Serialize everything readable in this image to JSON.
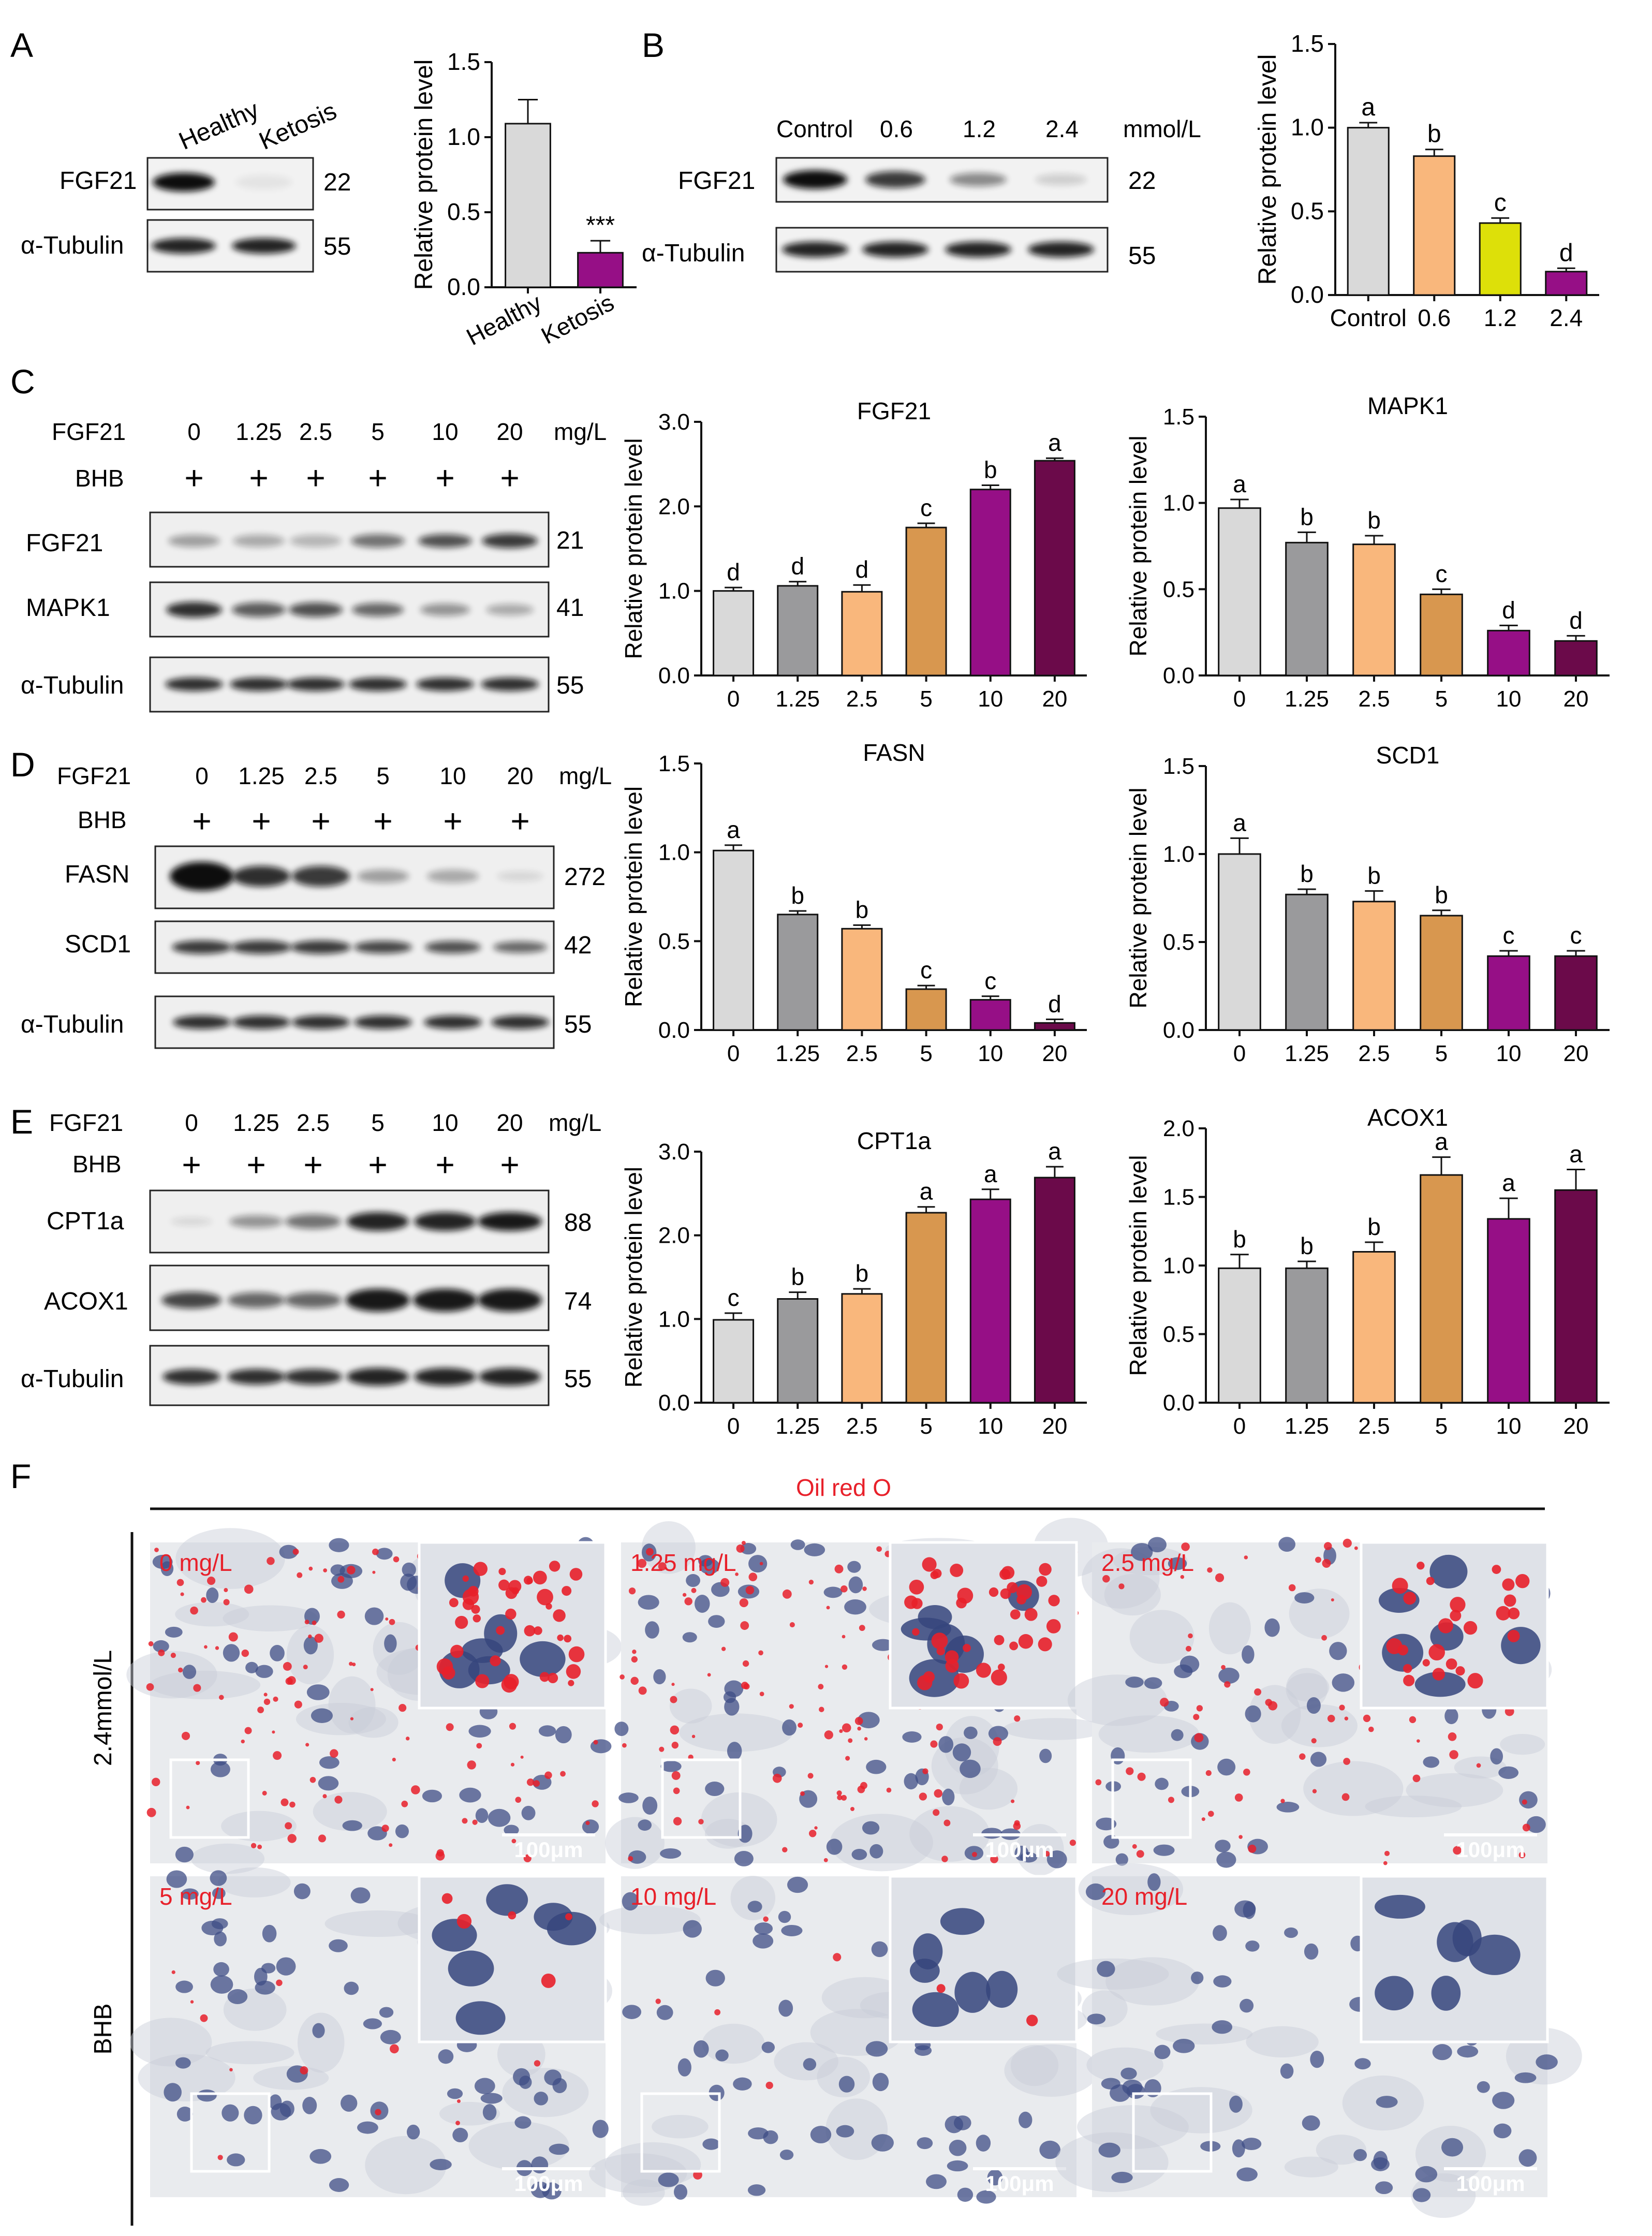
{
  "panel_letters": [
    "A",
    "B",
    "C",
    "D",
    "E",
    "F"
  ],
  "blot_A": {
    "lanes": [
      "Healthy",
      "Ketosis"
    ],
    "bands": [
      {
        "name": "FGF21",
        "kda": "22",
        "intensities": [
          1.0,
          0.06
        ]
      },
      {
        "name": "α-Tubulin",
        "kda": "55",
        "intensities": [
          0.9,
          0.9
        ]
      }
    ]
  },
  "blot_B": {
    "lanes": [
      "Control",
      "0.6",
      "1.2",
      "2.4"
    ],
    "unit": "mmol/L",
    "bands": [
      {
        "name": "FGF21",
        "kda": "22",
        "intensities": [
          1.0,
          0.8,
          0.45,
          0.15
        ]
      },
      {
        "name": "α-Tubulin",
        "kda": "55",
        "intensities": [
          0.9,
          0.9,
          0.9,
          0.9
        ]
      }
    ]
  },
  "blot_C": {
    "row_label_fgf21": "FGF21",
    "row_label_bhb": "BHB",
    "lanes": [
      "0",
      "1.25",
      "2.5",
      "5",
      "10",
      "20"
    ],
    "plus": "+",
    "unit": "mg/L",
    "bands": [
      {
        "name": "FGF21",
        "kda": "21",
        "intensities": [
          0.35,
          0.3,
          0.25,
          0.55,
          0.7,
          0.8
        ]
      },
      {
        "name": "MAPK1",
        "kda": "41",
        "intensities": [
          0.85,
          0.65,
          0.7,
          0.6,
          0.4,
          0.3
        ]
      },
      {
        "name": "α-Tubulin",
        "kda": "55",
        "intensities": [
          0.85,
          0.85,
          0.85,
          0.85,
          0.85,
          0.85
        ]
      }
    ]
  },
  "blot_D": {
    "row_label_fgf21": "FGF21",
    "row_label_bhb": "BHB",
    "lanes": [
      "0",
      "1.25",
      "2.5",
      "5",
      "10",
      "20"
    ],
    "plus": "+",
    "unit": "mg/L",
    "bands": [
      {
        "name": "FASN",
        "kda": "272",
        "intensities": [
          1.0,
          0.85,
          0.8,
          0.35,
          0.3,
          0.1
        ]
      },
      {
        "name": "SCD1",
        "kda": "42",
        "intensities": [
          0.8,
          0.8,
          0.8,
          0.75,
          0.7,
          0.6
        ]
      },
      {
        "name": "α-Tubulin",
        "kda": "55",
        "intensities": [
          0.85,
          0.85,
          0.85,
          0.85,
          0.85,
          0.85
        ]
      }
    ]
  },
  "blot_E": {
    "row_label_fgf21": "FGF21",
    "row_label_bhb": "BHB",
    "lanes": [
      "0",
      "1.25",
      "2.5",
      "5",
      "10",
      "20"
    ],
    "plus": "+",
    "unit": "mg/L",
    "bands": [
      {
        "name": "CPT1a",
        "kda": "88",
        "intensities": [
          0.1,
          0.4,
          0.55,
          0.9,
          0.9,
          0.95
        ]
      },
      {
        "name": "ACOX1",
        "kda": "74",
        "intensities": [
          0.75,
          0.6,
          0.6,
          0.95,
          0.95,
          0.95
        ]
      },
      {
        "name": "α-Tubulin",
        "kda": "55",
        "intensities": [
          0.85,
          0.85,
          0.85,
          0.85,
          0.85,
          0.85
        ]
      }
    ]
  },
  "colors": {
    "gray_light": "#d9d9d9",
    "gray_dark": "#9a9a9c",
    "peach": "#f9b77c",
    "tan": "#d8974f",
    "magenta": "#960f86",
    "maroon": "#6b0a4a",
    "lime": "#dde009",
    "stain_red": "#e8202a"
  },
  "chart_data": [
    {
      "type": "bar",
      "title": "",
      "ylabel": "Relative protein level",
      "ylim": [
        0,
        1.5
      ],
      "yticks": [
        "0.0",
        "0.5",
        "1.0",
        "1.5"
      ],
      "categories": [
        "Healthy",
        "Ketosis"
      ],
      "values": [
        1.09,
        0.23
      ],
      "errors": [
        0.16,
        0.08
      ],
      "annotations": [
        "",
        "***"
      ],
      "colors": [
        "#d9d9d9",
        "#960f86"
      ]
    },
    {
      "type": "bar",
      "title": "",
      "ylabel": "Relative protein level",
      "ylim": [
        0,
        1.5
      ],
      "yticks": [
        "0.0",
        "0.5",
        "1.0",
        "1.5"
      ],
      "categories": [
        "Control",
        "0.6",
        "1.2",
        "2.4"
      ],
      "values": [
        1.0,
        0.83,
        0.43,
        0.14
      ],
      "errors": [
        0.03,
        0.04,
        0.03,
        0.02
      ],
      "annotations": [
        "a",
        "b",
        "c",
        "d"
      ],
      "colors": [
        "#d9d9d9",
        "#f9b77c",
        "#dde009",
        "#960f86"
      ]
    },
    {
      "type": "bar",
      "title": "FGF21",
      "ylabel": "Relative protein level",
      "ylim": [
        0,
        3.0
      ],
      "yticks": [
        "0.0",
        "1.0",
        "2.0",
        "3.0"
      ],
      "categories": [
        "0",
        "1.25",
        "2.5",
        "5",
        "10",
        "20"
      ],
      "values": [
        1.0,
        1.06,
        0.99,
        1.75,
        2.2,
        2.54
      ],
      "errors": [
        0.04,
        0.05,
        0.08,
        0.05,
        0.05,
        0.03
      ],
      "annotations": [
        "d",
        "d",
        "d",
        "c",
        "b",
        "a"
      ],
      "colors": [
        "#d9d9d9",
        "#9a9a9c",
        "#f9b77c",
        "#d8974f",
        "#960f86",
        "#6b0a4a"
      ]
    },
    {
      "type": "bar",
      "title": "MAPK1",
      "ylabel": "Relative protein level",
      "ylim": [
        0,
        1.5
      ],
      "yticks": [
        "0.0",
        "0.5",
        "1.0",
        "1.5"
      ],
      "categories": [
        "0",
        "1.25",
        "2.5",
        "5",
        "10",
        "20"
      ],
      "values": [
        0.97,
        0.77,
        0.76,
        0.47,
        0.26,
        0.2
      ],
      "errors": [
        0.05,
        0.06,
        0.05,
        0.03,
        0.03,
        0.03
      ],
      "annotations": [
        "a",
        "b",
        "b",
        "c",
        "d",
        "d"
      ],
      "colors": [
        "#d9d9d9",
        "#9a9a9c",
        "#f9b77c",
        "#d8974f",
        "#960f86",
        "#6b0a4a"
      ]
    },
    {
      "type": "bar",
      "title": "FASN",
      "ylabel": "Relative protein level",
      "ylim": [
        0,
        1.5
      ],
      "yticks": [
        "0.0",
        "0.5",
        "1.0",
        "1.5"
      ],
      "categories": [
        "0",
        "1.25",
        "2.5",
        "5",
        "10",
        "20"
      ],
      "values": [
        1.01,
        0.65,
        0.57,
        0.23,
        0.17,
        0.04
      ],
      "errors": [
        0.03,
        0.02,
        0.02,
        0.02,
        0.02,
        0.02
      ],
      "annotations": [
        "a",
        "b",
        "b",
        "c",
        "c",
        "d"
      ],
      "colors": [
        "#d9d9d9",
        "#9a9a9c",
        "#f9b77c",
        "#d8974f",
        "#960f86",
        "#6b0a4a"
      ]
    },
    {
      "type": "bar",
      "title": "SCD1",
      "ylabel": "Relative protein level",
      "ylim": [
        0,
        1.5
      ],
      "yticks": [
        "0.0",
        "0.5",
        "1.0",
        "1.5"
      ],
      "categories": [
        "0",
        "1.25",
        "2.5",
        "5",
        "10",
        "20"
      ],
      "values": [
        1.0,
        0.77,
        0.73,
        0.65,
        0.42,
        0.42
      ],
      "errors": [
        0.09,
        0.03,
        0.06,
        0.03,
        0.03,
        0.03
      ],
      "annotations": [
        "a",
        "b",
        "b",
        "b",
        "c",
        "c"
      ],
      "colors": [
        "#d9d9d9",
        "#9a9a9c",
        "#f9b77c",
        "#d8974f",
        "#960f86",
        "#6b0a4a"
      ]
    },
    {
      "type": "bar",
      "title": "CPT1a",
      "ylabel": "Relative protein level",
      "ylim": [
        0,
        3.0
      ],
      "yticks": [
        "0.0",
        "1.0",
        "2.0",
        "3.0"
      ],
      "categories": [
        "0",
        "1.25",
        "2.5",
        "5",
        "10",
        "20"
      ],
      "values": [
        0.99,
        1.24,
        1.3,
        2.27,
        2.43,
        2.69
      ],
      "errors": [
        0.08,
        0.08,
        0.06,
        0.07,
        0.12,
        0.13
      ],
      "annotations": [
        "c",
        "b",
        "b",
        "a",
        "a",
        "a"
      ],
      "colors": [
        "#d9d9d9",
        "#9a9a9c",
        "#f9b77c",
        "#d8974f",
        "#960f86",
        "#6b0a4a"
      ]
    },
    {
      "type": "bar",
      "title": "ACOX1",
      "ylabel": "Relative protein level",
      "ylim": [
        0,
        2.0
      ],
      "yticks": [
        "0.0",
        "0.5",
        "1.0",
        "1.5",
        "2.0"
      ],
      "categories": [
        "0",
        "1.25",
        "2.5",
        "5",
        "10",
        "20"
      ],
      "values": [
        0.98,
        0.98,
        1.1,
        1.66,
        1.34,
        1.55
      ],
      "errors": [
        0.1,
        0.05,
        0.07,
        0.13,
        0.15,
        0.15
      ],
      "annotations": [
        "b",
        "b",
        "b",
        "a",
        "a",
        "a"
      ],
      "colors": [
        "#d9d9d9",
        "#9a9a9c",
        "#f9b77c",
        "#d8974f",
        "#960f86",
        "#6b0a4a"
      ]
    }
  ],
  "panel_F": {
    "header": "Oil red O",
    "side_label_top": "2.4mmol/L",
    "side_label_bottom": "BHB",
    "scale_bar": "100μm",
    "images": [
      {
        "label": "0 mg/L",
        "lipid": 0.9
      },
      {
        "label": "1.25 mg/L",
        "lipid": 0.85
      },
      {
        "label": "2.5 mg/L",
        "lipid": 0.55
      },
      {
        "label": "5 mg/L",
        "lipid": 0.12
      },
      {
        "label": "10 mg/L",
        "lipid": 0.05
      },
      {
        "label": "20 mg/L",
        "lipid": 0.0
      }
    ]
  }
}
